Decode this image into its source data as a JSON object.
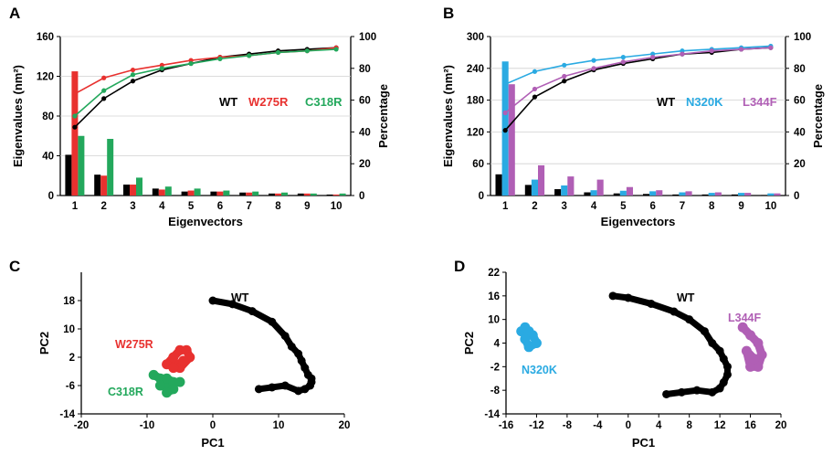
{
  "colors": {
    "WT": "#000000",
    "W275R": "#e8312f",
    "C318R": "#23a85c",
    "N320K": "#2aaae2",
    "L344F": "#b05fb5"
  },
  "chart_data": [
    {
      "panel": "A",
      "type": "bar",
      "xlabel": "Eigenvectors",
      "ylabel": "Eigenvalues (nm²)",
      "y2label": "Percentage",
      "categories": [
        "1",
        "2",
        "3",
        "4",
        "5",
        "6",
        "7",
        "8",
        "9",
        "10"
      ],
      "ylim": [
        0,
        160
      ],
      "yticks": [
        0,
        40,
        80,
        120,
        160
      ],
      "y2lim": [
        0,
        100
      ],
      "y2ticks": [
        0,
        20,
        40,
        60,
        80,
        100
      ],
      "legend": [
        "WT",
        "W275R",
        "C318R"
      ],
      "series": [
        {
          "name": "WT",
          "values": [
            41,
            21,
            11,
            7,
            4,
            4,
            3,
            2,
            2,
            1
          ]
        },
        {
          "name": "W275R",
          "values": [
            125,
            20,
            11,
            6,
            5,
            4,
            3,
            2,
            2,
            1
          ]
        },
        {
          "name": "C318R",
          "values": [
            60,
            57,
            18,
            9,
            7,
            5,
            4,
            3,
            2,
            2
          ]
        }
      ],
      "cumulative": [
        {
          "name": "WT",
          "values": [
            43,
            61,
            72,
            79,
            83,
            87,
            89,
            91,
            92,
            93
          ]
        },
        {
          "name": "W275R",
          "values": [
            64,
            74,
            79,
            82,
            85,
            87,
            88,
            90,
            91,
            93
          ]
        },
        {
          "name": "C318R",
          "values": [
            50,
            66,
            76,
            80,
            83,
            86,
            88,
            90,
            91,
            92
          ]
        }
      ]
    },
    {
      "panel": "B",
      "type": "bar",
      "xlabel": "Eigenvectors",
      "ylabel": "Eigenvalues (nm²)",
      "y2label": "Percentage",
      "categories": [
        "1",
        "2",
        "3",
        "4",
        "5",
        "6",
        "7",
        "8",
        "9",
        "10"
      ],
      "ylim": [
        0,
        300
      ],
      "yticks": [
        0,
        60,
        120,
        180,
        240,
        300
      ],
      "y2lim": [
        0,
        100
      ],
      "y2ticks": [
        0,
        20,
        40,
        60,
        80,
        100
      ],
      "legend": [
        "WT",
        "N320K",
        "L344F"
      ],
      "series": [
        {
          "name": "WT",
          "values": [
            40,
            20,
            12,
            6,
            4,
            3,
            2,
            2,
            2,
            1
          ]
        },
        {
          "name": "N320K",
          "values": [
            253,
            30,
            19,
            10,
            9,
            8,
            6,
            5,
            5,
            4
          ]
        },
        {
          "name": "L344F",
          "values": [
            210,
            57,
            36,
            30,
            16,
            10,
            8,
            6,
            5,
            4
          ]
        }
      ],
      "cumulative": [
        {
          "name": "WT",
          "values": [
            41,
            62,
            72,
            79,
            83,
            86,
            89,
            90,
            92,
            93
          ]
        },
        {
          "name": "N320K",
          "values": [
            70,
            78,
            82,
            85,
            87,
            89,
            91,
            92,
            93,
            94
          ]
        },
        {
          "name": "L344F",
          "values": [
            52,
            67,
            75,
            80,
            84,
            87,
            89,
            91,
            92,
            93
          ]
        }
      ]
    },
    {
      "panel": "C",
      "type": "scatter",
      "xlabel": "PC1",
      "ylabel": "PC2",
      "xlim": [
        -20,
        20
      ],
      "xticks": [
        -20,
        -10,
        0,
        10,
        20
      ],
      "ylim": [
        -14,
        26
      ],
      "yticks": [
        -14,
        -6,
        2,
        10,
        18
      ],
      "series": [
        {
          "name": "WT",
          "x": [
            0,
            3,
            6,
            9,
            11,
            12,
            13,
            13.5,
            14,
            14.5,
            15,
            15,
            14.8,
            14,
            13,
            11,
            9,
            7
          ],
          "y": [
            18,
            17,
            15,
            12,
            8,
            5,
            3,
            1,
            -1,
            -3,
            -4,
            -5,
            -6,
            -7,
            -7.5,
            -6,
            -6.5,
            -7
          ]
        },
        {
          "name": "W275R",
          "x": [
            -7,
            -6,
            -5,
            -4,
            -3.5,
            -5,
            -6,
            -4.5
          ],
          "y": [
            0,
            2,
            4,
            4,
            2,
            -1,
            -1,
            1
          ]
        },
        {
          "name": "C318R",
          "x": [
            -9,
            -8,
            -7,
            -6,
            -5,
            -8,
            -6,
            -7
          ],
          "y": [
            -3,
            -4,
            -4,
            -5,
            -5,
            -6,
            -7,
            -8
          ]
        }
      ]
    },
    {
      "panel": "D",
      "type": "scatter",
      "xlabel": "PC1",
      "ylabel": "PC2",
      "xlim": [
        -16,
        20
      ],
      "xticks": [
        -16,
        -12,
        -8,
        -4,
        0,
        4,
        8,
        12,
        16,
        20
      ],
      "ylim": [
        -14,
        22
      ],
      "yticks": [
        -14,
        -8,
        -2,
        4,
        10,
        16,
        22
      ],
      "series": [
        {
          "name": "WT",
          "x": [
            -2,
            0,
            3,
            6,
            8,
            10,
            11,
            12,
            12.5,
            13,
            13,
            12.5,
            12,
            11,
            9,
            7,
            5
          ],
          "y": [
            16,
            15.5,
            14,
            12,
            10,
            7,
            4,
            2,
            0,
            -2,
            -4,
            -6,
            -7.5,
            -8.5,
            -8,
            -8.5,
            -9
          ]
        },
        {
          "name": "N320K",
          "x": [
            -14,
            -13.5,
            -13,
            -12.5,
            -12,
            -13,
            -13.5
          ],
          "y": [
            7,
            8,
            7,
            6,
            4,
            3,
            5
          ]
        },
        {
          "name": "L344F",
          "x": [
            15,
            16,
            17,
            17.5,
            17,
            16,
            15.5,
            16.5
          ],
          "y": [
            8,
            6,
            4,
            1,
            -2,
            -2,
            2,
            0
          ]
        }
      ]
    }
  ]
}
